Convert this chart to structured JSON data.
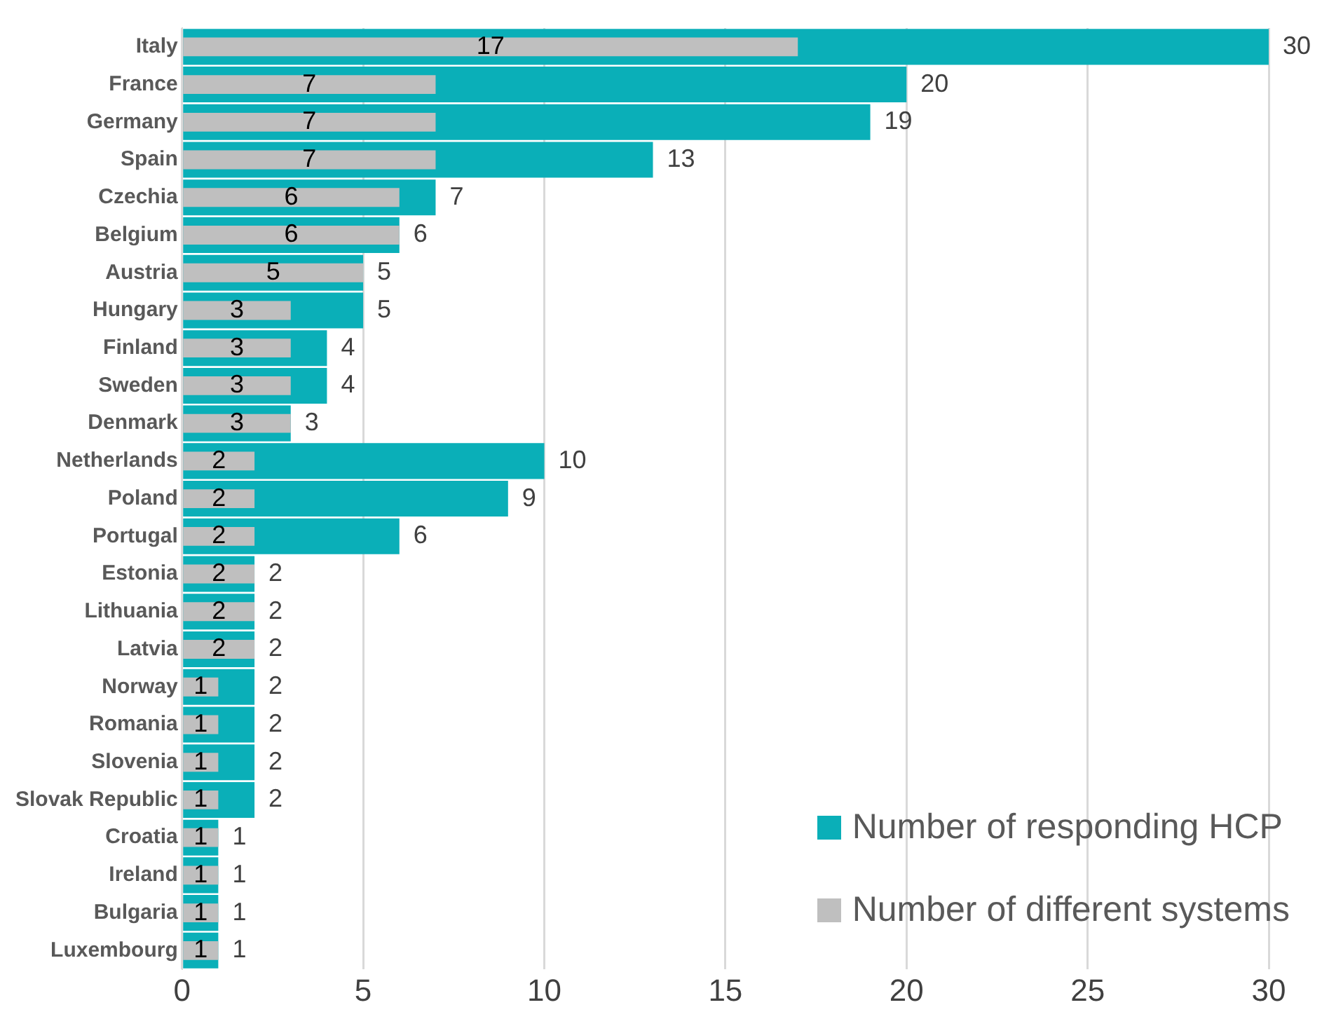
{
  "chart_data": {
    "type": "bar",
    "orientation": "horizontal",
    "categories": [
      "Italy",
      "France",
      "Germany",
      "Spain",
      "Czechia",
      "Belgium",
      "Austria",
      "Hungary",
      "Finland",
      "Sweden",
      "Denmark",
      "Netherlands",
      "Poland",
      "Portugal",
      "Estonia",
      "Lithuania",
      "Latvia",
      "Norway",
      "Romania",
      "Slovenia",
      "Slovak Republic",
      "Croatia",
      "Ireland",
      "Bulgaria",
      "Luxembourg"
    ],
    "series": [
      {
        "name": "Number of responding HCP",
        "color": "#0aafb8",
        "values": [
          30,
          20,
          19,
          13,
          7,
          6,
          5,
          5,
          4,
          4,
          3,
          10,
          9,
          6,
          2,
          2,
          2,
          2,
          2,
          2,
          2,
          1,
          1,
          1,
          1
        ]
      },
      {
        "name": "Number of different systems",
        "color": "#bfbfbf",
        "values": [
          17,
          7,
          7,
          7,
          6,
          6,
          5,
          3,
          3,
          3,
          3,
          2,
          2,
          2,
          2,
          2,
          2,
          1,
          1,
          1,
          1,
          1,
          1,
          1,
          1
        ]
      }
    ],
    "xlim": [
      0,
      30
    ],
    "xticks": [
      0,
      5,
      10,
      15,
      20,
      25,
      30
    ],
    "grid": "x",
    "legend": "bottom right",
    "data_labels": true
  }
}
